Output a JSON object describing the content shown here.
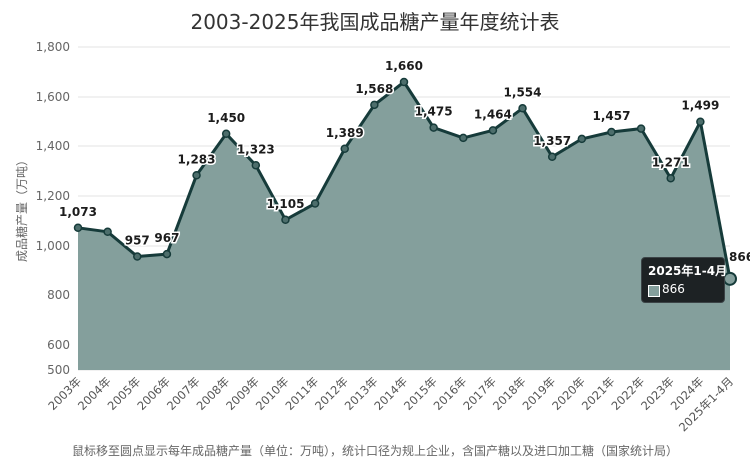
{
  "title": "2003-2025年我国成品糖产量年度统计表",
  "footnote": "鼠标移至圆点显示每年成品糖产量（单位：万吨），统计口径为规上企业，含国产糖以及进口加工糖（国家统计局）",
  "tooltip": {
    "title": "2025年1-4月",
    "value": "866"
  },
  "colors": {
    "line": "#163b3a",
    "fill": "#849f9c",
    "grid": "#e3e3e3",
    "tooltip_bg": "#1d2224"
  },
  "chart_data": {
    "type": "area",
    "ylabel": "成品糖产量（万吨）",
    "ylim": [
      500,
      1800
    ],
    "yticks": [
      500,
      600,
      800,
      1000,
      1200,
      1400,
      1600,
      1800
    ],
    "ytick_labels": [
      "500",
      "600",
      "800",
      "1,000",
      "1,200",
      "1,400",
      "1,600",
      "1,800"
    ],
    "categories": [
      "2003年",
      "2004年",
      "2005年",
      "2006年",
      "2007年",
      "2008年",
      "2009年",
      "2010年",
      "2011年",
      "2012年",
      "2013年",
      "2014年",
      "2015年",
      "2016年",
      "2017年",
      "2018年",
      "2019年",
      "2020年",
      "2021年",
      "2022年",
      "2023年",
      "2024年",
      "2025年1-4月"
    ],
    "values": [
      1073,
      1057,
      957,
      967,
      1283,
      1450,
      1323,
      1105,
      1170,
      1389,
      1568,
      1660,
      1475,
      1433,
      1464,
      1554,
      1357,
      1429,
      1457,
      1471,
      1271,
      1499,
      866
    ],
    "data_labels": [
      "1,073",
      "",
      "957",
      "967",
      "1,283",
      "1,450",
      "1,323",
      "1,105",
      "",
      "1,389",
      "1,568",
      "1,660",
      "1,475",
      "",
      "1,464",
      "1,554",
      "1,357",
      "",
      "1,457",
      "",
      "1,271",
      "1,499",
      "866"
    ],
    "grid": true,
    "legend": "none"
  }
}
